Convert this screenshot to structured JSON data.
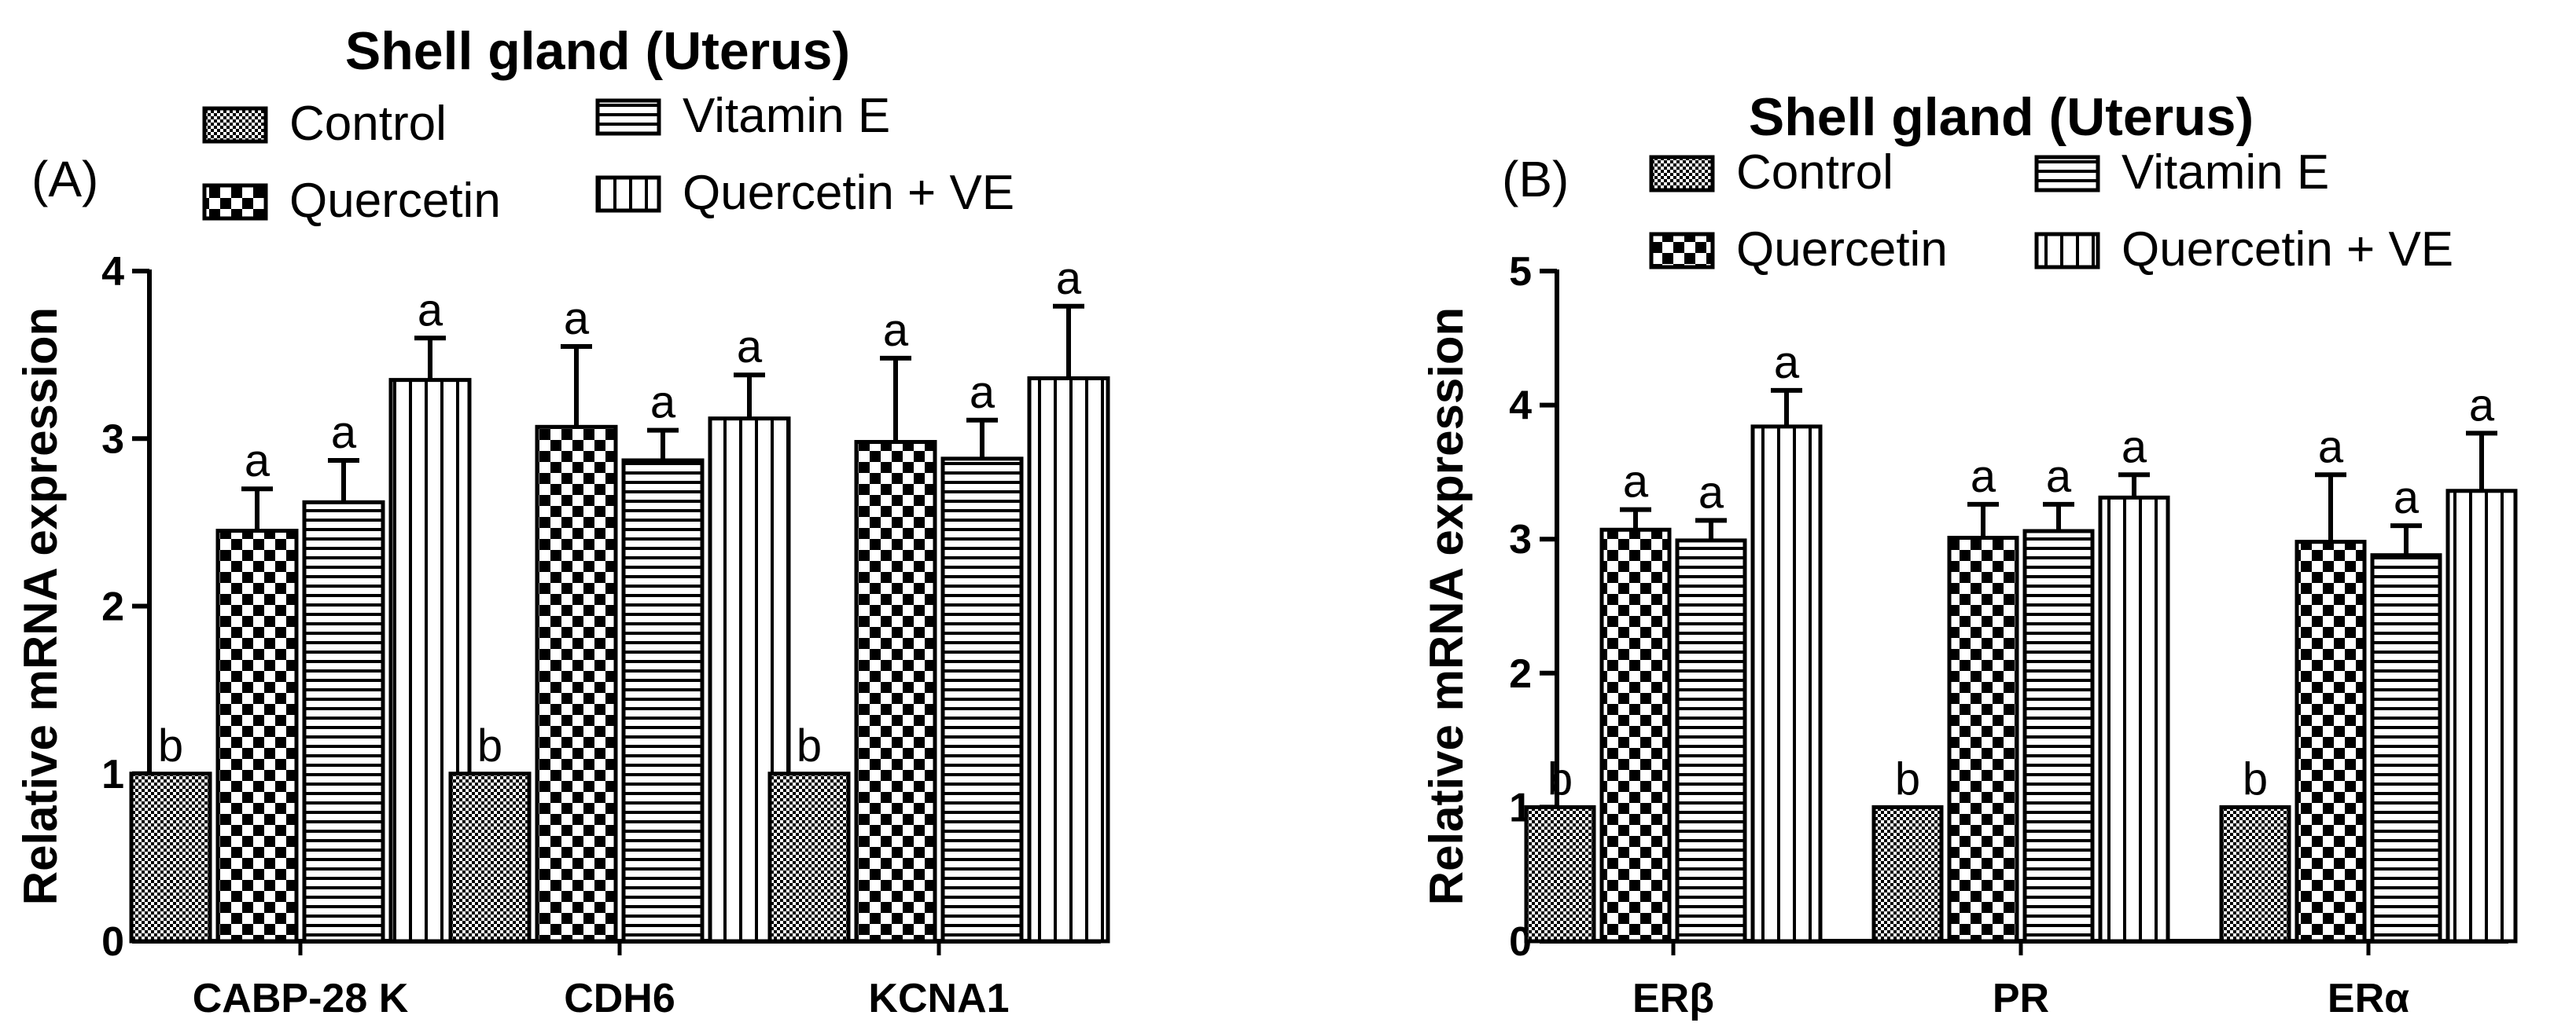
{
  "chart_data": [
    {
      "type": "bar",
      "panel": "(A)",
      "title": "Shell gland (Uterus)",
      "ylabel": "Relative mRNA expression",
      "xlabel": "",
      "ylim": [
        0,
        4
      ],
      "yticks": [
        "0",
        "1",
        "2",
        "3",
        "4"
      ],
      "legend": [
        "Control",
        "Quercetin",
        "Vitamin E",
        "Quercetin + VE"
      ],
      "categories": [
        "CABP-28 K",
        "CDH6",
        "KCNA1"
      ],
      "series": [
        {
          "name": "Control",
          "pattern": "fine-check",
          "values": [
            1.0,
            1.0,
            1.0
          ],
          "errors": [
            0,
            0,
            0
          ],
          "letters": [
            "b",
            "b",
            "b"
          ]
        },
        {
          "name": "Quercetin",
          "pattern": "checker",
          "values": [
            2.45,
            3.07,
            2.98
          ],
          "errors": [
            0.25,
            0.48,
            0.5
          ],
          "letters": [
            "a",
            "a",
            "a"
          ]
        },
        {
          "name": "Vitamin E",
          "pattern": "horizontal",
          "values": [
            2.62,
            2.87,
            2.88
          ],
          "errors": [
            0.25,
            0.18,
            0.23
          ],
          "letters": [
            "a",
            "a",
            "a"
          ]
        },
        {
          "name": "Quercetin + VE",
          "pattern": "vertical",
          "values": [
            3.35,
            3.12,
            3.36
          ],
          "errors": [
            0.25,
            0.26,
            0.43
          ],
          "letters": [
            "a",
            "a",
            "a"
          ]
        }
      ]
    },
    {
      "type": "bar",
      "panel": "(B)",
      "title": "Shell gland (Uterus)",
      "ylabel": "Relative mRNA expression",
      "xlabel": "",
      "ylim": [
        0,
        5
      ],
      "yticks": [
        "0",
        "1",
        "2",
        "3",
        "4",
        "5"
      ],
      "legend": [
        "Control",
        "Quercetin",
        "Vitamin E",
        "Quercetin + VE"
      ],
      "categories": [
        "ERβ",
        "PR",
        "ERα"
      ],
      "series": [
        {
          "name": "Control",
          "pattern": "fine-check",
          "values": [
            1.0,
            1.0,
            1.0
          ],
          "errors": [
            0,
            0,
            0
          ],
          "letters": [
            "b",
            "b",
            "b"
          ]
        },
        {
          "name": "Quercetin",
          "pattern": "checker",
          "values": [
            3.07,
            3.01,
            2.98
          ],
          "errors": [
            0.15,
            0.25,
            0.5
          ],
          "letters": [
            "a",
            "a",
            "a"
          ]
        },
        {
          "name": "Vitamin E",
          "pattern": "horizontal",
          "values": [
            2.99,
            3.06,
            2.88
          ],
          "errors": [
            0.15,
            0.2,
            0.22
          ],
          "letters": [
            "a",
            "a",
            "a"
          ]
        },
        {
          "name": "Quercetin + VE",
          "pattern": "vertical",
          "values": [
            3.84,
            3.31,
            3.36
          ],
          "errors": [
            0.27,
            0.17,
            0.43
          ],
          "letters": [
            "a",
            "a",
            "a"
          ]
        }
      ]
    }
  ]
}
